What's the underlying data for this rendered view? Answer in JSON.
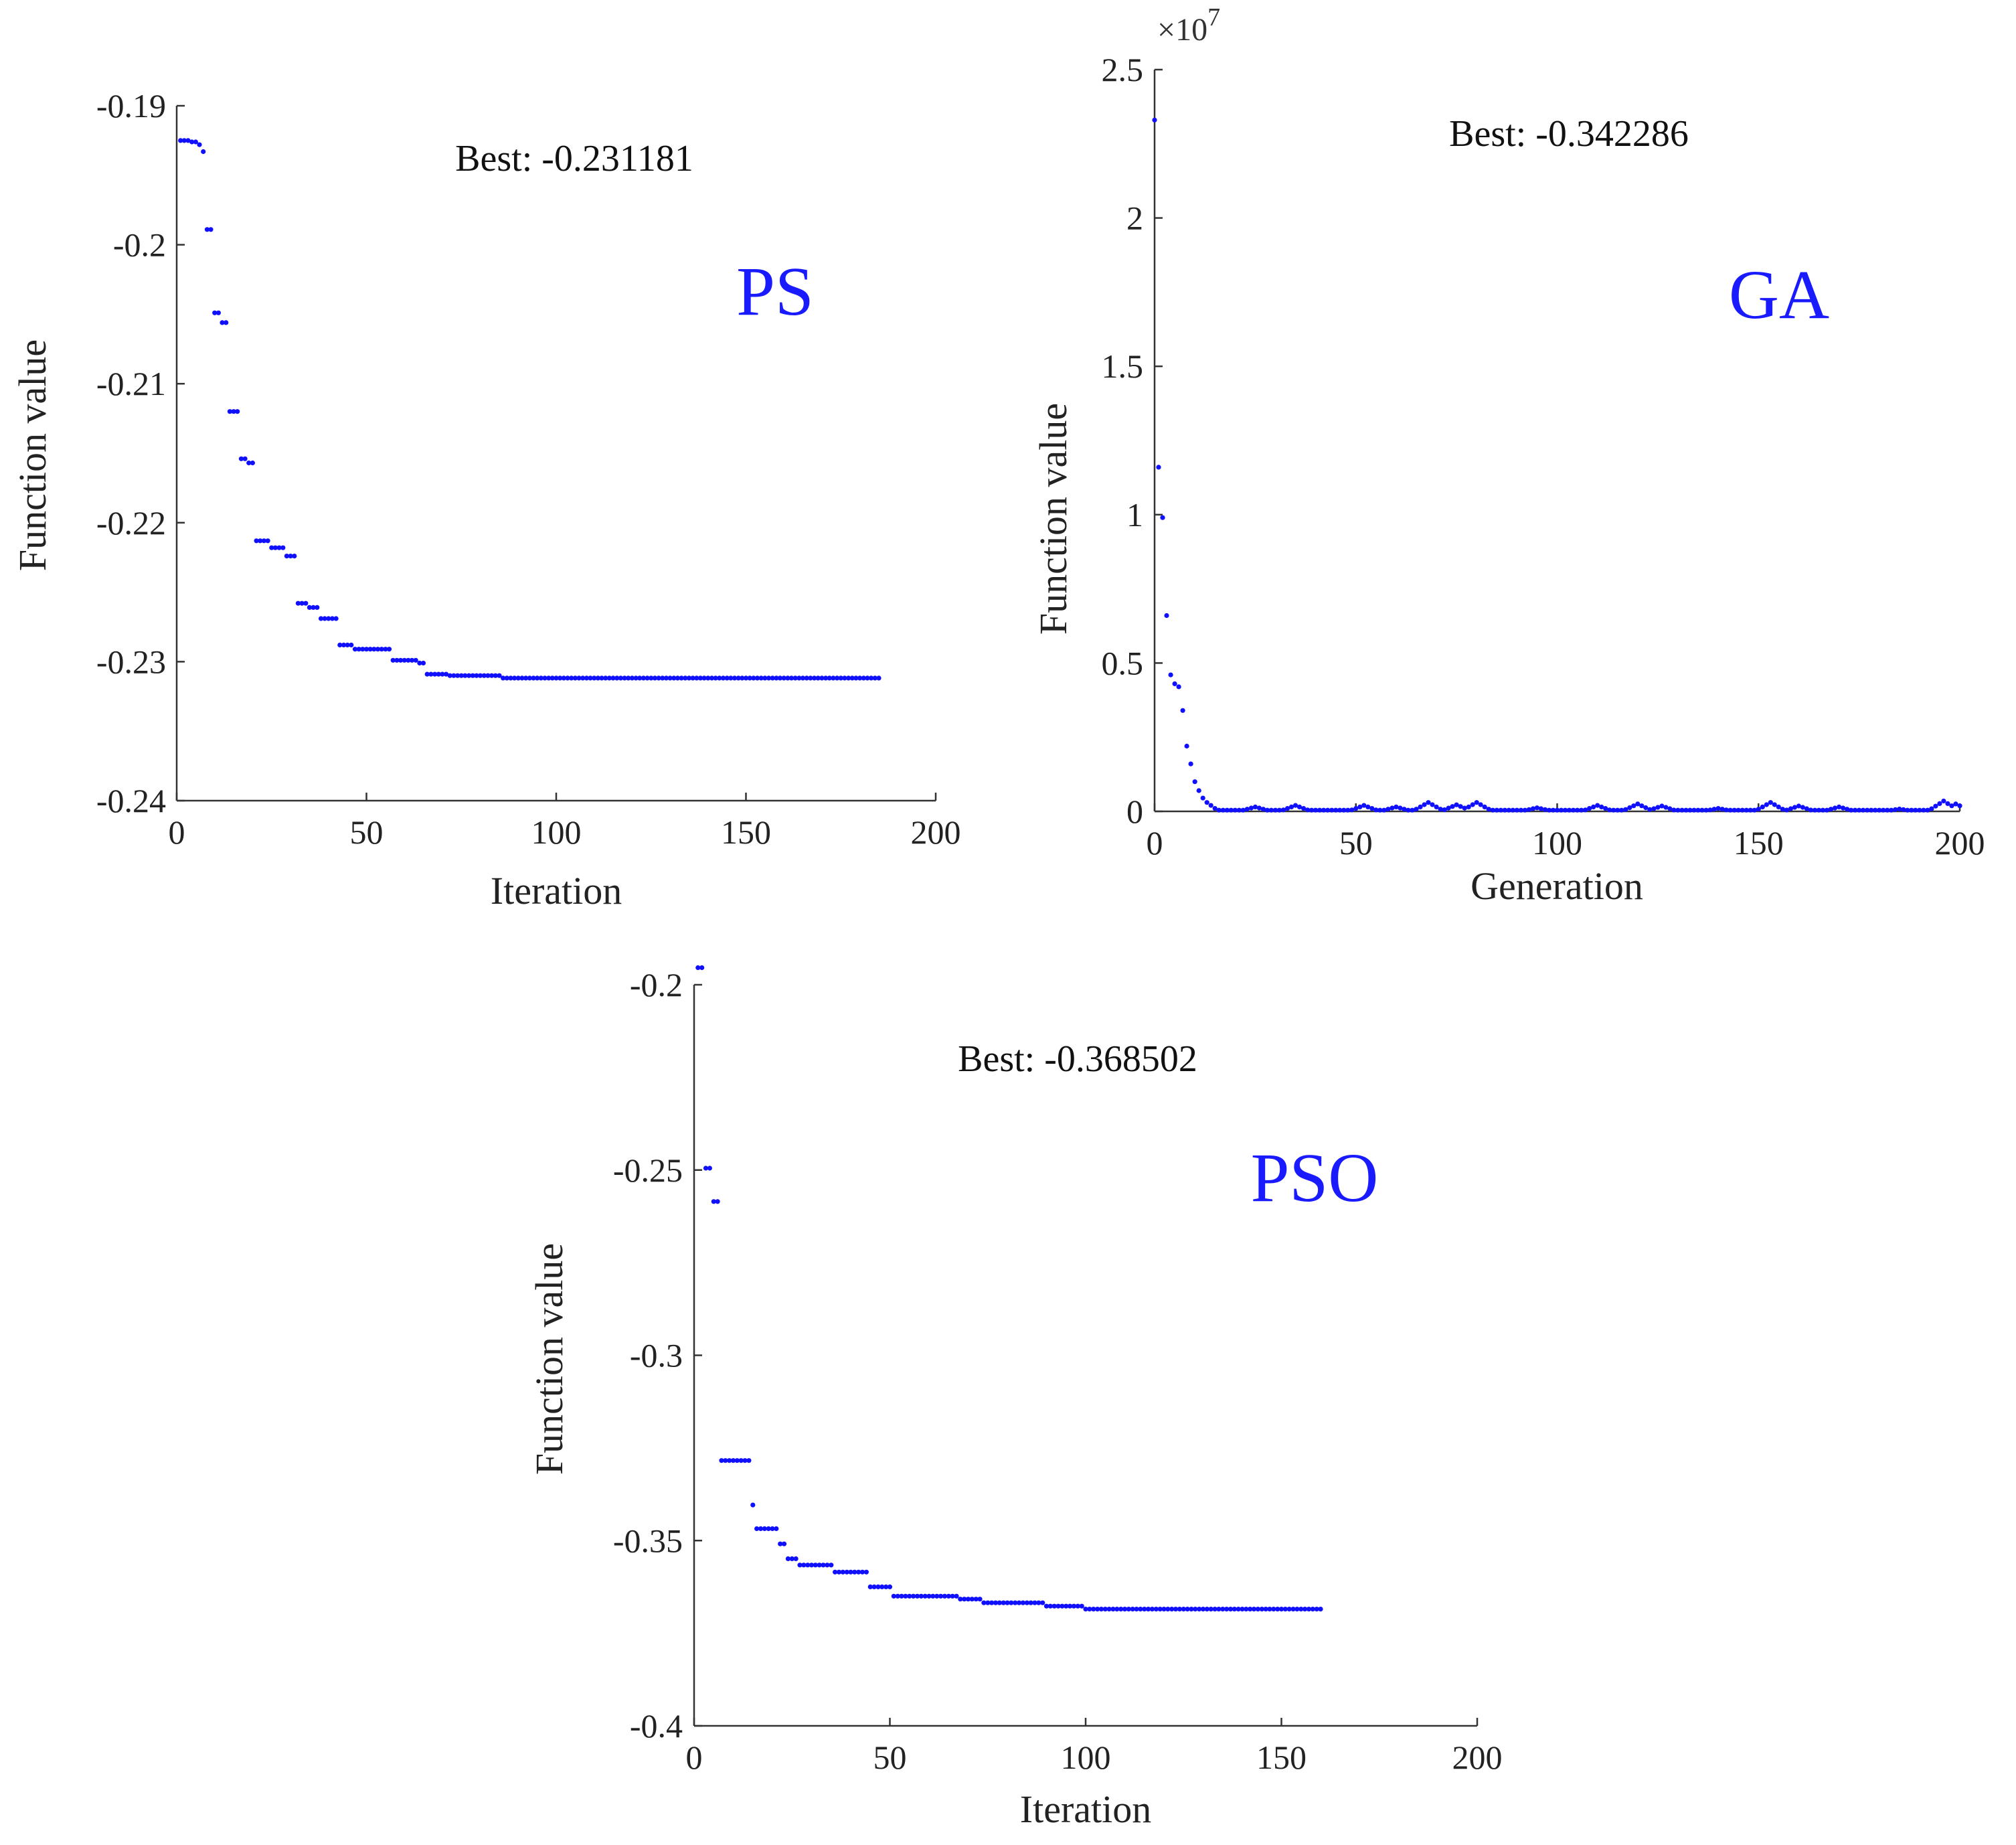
{
  "colors": {
    "marker": "#1010ff",
    "algo_label": "#1a1aff",
    "axis": "#333333",
    "text": "#222222"
  },
  "chart_data": [
    {
      "id": "ps",
      "type": "scatter",
      "algorithm_label": "PS",
      "best_text": "Best: -0.231181",
      "xlabel": "Iteration",
      "ylabel": "Function value",
      "xlim": [
        0,
        200
      ],
      "ylim": [
        -0.24,
        -0.19
      ],
      "xticks": [
        0,
        50,
        100,
        150,
        200
      ],
      "xtick_labels": [
        "0",
        "50",
        "100",
        "150",
        "200"
      ],
      "yticks": [
        -0.19,
        -0.2,
        -0.21,
        -0.22,
        -0.23,
        -0.24
      ],
      "ytick_labels": [
        "-0.19",
        "-0.2",
        "-0.21",
        "-0.22",
        "-0.23",
        "-0.24"
      ],
      "exponent_label": null,
      "series": [
        {
          "name": "Function value",
          "x_start": 1,
          "x_end": 185,
          "step_values": [
            [
              1,
              -0.1925
            ],
            [
              4,
              -0.1926
            ],
            [
              6,
              -0.1928
            ],
            [
              7,
              -0.1933
            ],
            [
              8,
              -0.1989
            ],
            [
              10,
              -0.2049
            ],
            [
              12,
              -0.2056
            ],
            [
              14,
              -0.212
            ],
            [
              17,
              -0.2154
            ],
            [
              19,
              -0.2157
            ],
            [
              21,
              -0.2213
            ],
            [
              25,
              -0.2218
            ],
            [
              29,
              -0.2224
            ],
            [
              32,
              -0.2258
            ],
            [
              35,
              -0.2261
            ],
            [
              38,
              -0.2269
            ],
            [
              43,
              -0.2288
            ],
            [
              47,
              -0.2291
            ],
            [
              57,
              -0.2299
            ],
            [
              64,
              -0.2301
            ],
            [
              66,
              -0.2309
            ],
            [
              72,
              -0.231
            ],
            [
              86,
              -0.23118
            ]
          ]
        }
      ]
    },
    {
      "id": "ga",
      "type": "scatter",
      "algorithm_label": "GA",
      "best_text": "Best: -0.342286",
      "xlabel": "Generation",
      "ylabel": "Function value",
      "xlim": [
        0,
        200
      ],
      "ylim": [
        0,
        25000000
      ],
      "xticks": [
        0,
        50,
        100,
        150,
        200
      ],
      "xtick_labels": [
        "0",
        "50",
        "100",
        "150",
        "200"
      ],
      "yticks": [
        0,
        5000000,
        10000000,
        15000000,
        20000000,
        25000000
      ],
      "ytick_labels": [
        "0",
        "0.5",
        "1",
        "1.5",
        "2",
        "2.5"
      ],
      "exponent_label": "×10",
      "exponent_power": "7",
      "series": [
        {
          "name": "Function value",
          "early_points": [
            [
              0,
              23300000
            ],
            [
              1,
              11600000
            ],
            [
              2,
              9900000
            ],
            [
              3,
              6600000
            ],
            [
              4,
              4600000
            ],
            [
              5,
              4300000
            ],
            [
              6,
              4200000
            ],
            [
              7,
              3400000
            ],
            [
              8,
              2200000
            ],
            [
              9,
              1600000
            ],
            [
              10,
              1000000
            ],
            [
              11,
              700000
            ],
            [
              12,
              450000
            ],
            [
              13,
              300000
            ],
            [
              14,
              200000
            ],
            [
              15,
              100000
            ]
          ],
          "tail_x_end": 200,
          "tail_bumps": [
            [
              25,
              150000
            ],
            [
              35,
              200000
            ],
            [
              52,
              200000
            ],
            [
              60,
              150000
            ],
            [
              68,
              300000
            ],
            [
              75,
              220000
            ],
            [
              80,
              300000
            ],
            [
              95,
              120000
            ],
            [
              110,
              200000
            ],
            [
              120,
              250000
            ],
            [
              126,
              180000
            ],
            [
              140,
              100000
            ],
            [
              153,
              300000
            ],
            [
              160,
              180000
            ],
            [
              170,
              150000
            ],
            [
              185,
              80000
            ],
            [
              196,
              350000
            ],
            [
              199,
              250000
            ]
          ]
        }
      ]
    },
    {
      "id": "pso",
      "type": "scatter",
      "algorithm_label": "PSO",
      "best_text": "Best: -0.368502",
      "xlabel": "Iteration",
      "ylabel": "Function value",
      "xlim": [
        0,
        200
      ],
      "ylim": [
        -0.4,
        -0.2
      ],
      "xticks": [
        0,
        50,
        100,
        150,
        200
      ],
      "xtick_labels": [
        "0",
        "50",
        "100",
        "150",
        "200"
      ],
      "yticks": [
        -0.2,
        -0.25,
        -0.3,
        -0.35,
        -0.4
      ],
      "ytick_labels": [
        "-0.2",
        "-0.25",
        "-0.3",
        "-0.35",
        "-0.4"
      ],
      "exponent_label": null,
      "series": [
        {
          "name": "Function value",
          "x_start": 1,
          "x_end": 160,
          "step_values": [
            [
              1,
              -0.1954
            ],
            [
              3,
              -0.2495
            ],
            [
              5,
              -0.2585
            ],
            [
              7,
              -0.3284
            ],
            [
              15,
              -0.3404
            ],
            [
              16,
              -0.3468
            ],
            [
              22,
              -0.3509
            ],
            [
              24,
              -0.3549
            ],
            [
              27,
              -0.3566
            ],
            [
              36,
              -0.3585
            ],
            [
              45,
              -0.3625
            ],
            [
              51,
              -0.365
            ],
            [
              68,
              -0.3658
            ],
            [
              74,
              -0.3668
            ],
            [
              90,
              -0.3677
            ],
            [
              100,
              -0.3685
            ]
          ]
        }
      ]
    }
  ]
}
